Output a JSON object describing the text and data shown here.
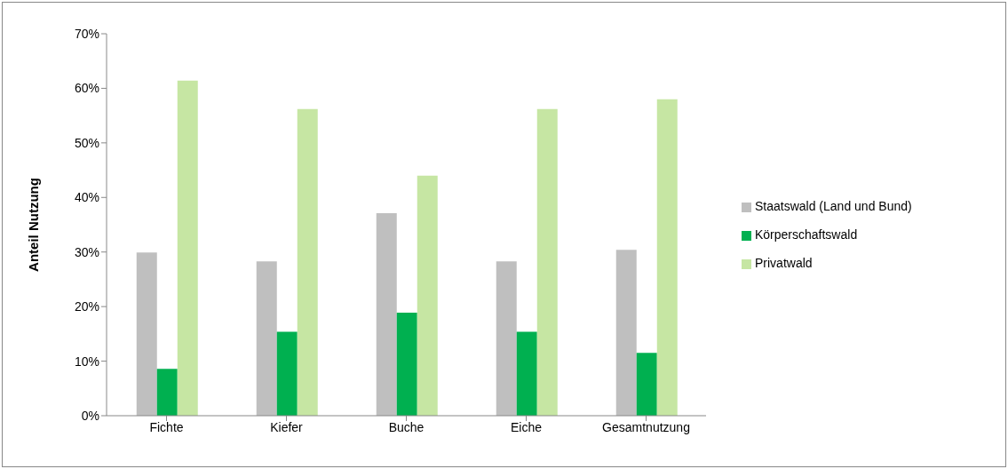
{
  "chart_data": {
    "type": "bar",
    "ylabel": "Anteil Nutzung",
    "categories": [
      "Fichte",
      "Kiefer",
      "Buche",
      "Eiche",
      "Gesamtnutzung"
    ],
    "series": [
      {
        "name": "Staatswald (Land und Bund)",
        "color": "#bfbfbf",
        "values": [
          29.9,
          28.3,
          37.1,
          28.3,
          30.4
        ]
      },
      {
        "name": "Körperschaftswald",
        "color": "#00b050",
        "values": [
          8.6,
          15.4,
          18.9,
          15.4,
          11.5
        ]
      },
      {
        "name": "Privatwald",
        "color": "#c6e6a3",
        "values": [
          61.4,
          56.2,
          44.0,
          56.2,
          58.0
        ]
      }
    ],
    "ylim": [
      0,
      70
    ],
    "yticks": [
      {
        "value": 0,
        "label": "0%"
      },
      {
        "value": 10,
        "label": "10%"
      },
      {
        "value": 20,
        "label": "20%"
      },
      {
        "value": 30,
        "label": "30%"
      },
      {
        "value": 40,
        "label": "40%"
      },
      {
        "value": 50,
        "label": "50%"
      },
      {
        "value": 60,
        "label": "60%"
      },
      {
        "value": 70,
        "label": "70%"
      }
    ],
    "grid": false,
    "legend": "right"
  }
}
